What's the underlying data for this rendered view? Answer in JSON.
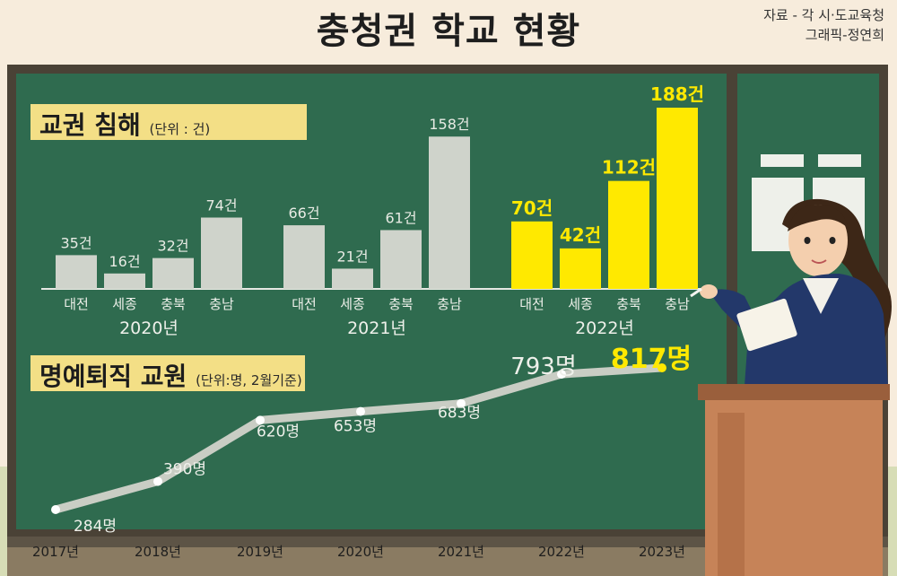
{
  "header": {
    "title": "충청권 학교 현황",
    "credit_source": "자료 - 각 시·도교육청",
    "credit_graphic": "그래픽-정연희"
  },
  "colors": {
    "board": "#2f6b4f",
    "bar_gray": "#cfd3cb",
    "bar_highlight": "#ffe900",
    "label_bg": "#f3df86",
    "line": "#c9cdc4"
  },
  "chart_data": [
    {
      "type": "bar",
      "title": "교권 침해",
      "unit_note": "(단위 : 건)",
      "groups": [
        {
          "year": "2020년",
          "categories": [
            "대전",
            "세종",
            "충북",
            "충남"
          ],
          "values": [
            35,
            16,
            32,
            74
          ],
          "labels": [
            "35건",
            "16건",
            "32건",
            "74건"
          ]
        },
        {
          "year": "2021년",
          "categories": [
            "대전",
            "세종",
            "충북",
            "충남"
          ],
          "values": [
            66,
            21,
            61,
            158
          ],
          "labels": [
            "66건",
            "21건",
            "61건",
            "158건"
          ]
        },
        {
          "year": "2022년",
          "categories": [
            "대전",
            "세종",
            "충북",
            "충남"
          ],
          "values": [
            70,
            42,
            112,
            188
          ],
          "labels": [
            "70건",
            "42건",
            "112건",
            "188건"
          ],
          "highlight": true
        }
      ],
      "ylim": [
        0,
        188
      ]
    },
    {
      "type": "line",
      "title": "명예퇴직 교원",
      "unit_note": "(단위:명, 2월기준)",
      "x": [
        "2017년",
        "2018년",
        "2019년",
        "2020년",
        "2021년",
        "2022년",
        "2023년"
      ],
      "values": [
        284,
        390,
        620,
        653,
        683,
        793,
        817
      ],
      "labels": [
        "284명",
        "390명",
        "620명",
        "653명",
        "683명",
        "793명",
        "817명"
      ],
      "ylim": [
        284,
        817
      ]
    }
  ]
}
